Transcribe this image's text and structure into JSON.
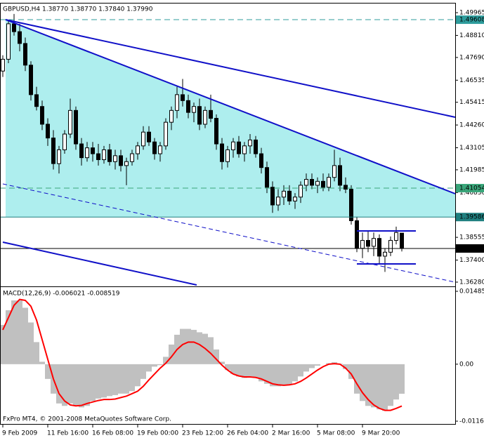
{
  "chart_data": [
    {
      "type": "candlestick",
      "title": "GBPUSD,H4  1.38770 1.38770 1.37840 1.37990",
      "up_color": "#ffffff",
      "down_color": "#000000",
      "wick_color": "#000000",
      "xlim": [
        -0.5,
        80.5
      ],
      "ylim": [
        1.361,
        1.5043
      ],
      "yticks": [
        1.49965,
        {
          "value": 1.4881,
          "label": "1.48810"
        },
        {
          "value": 1.4769,
          "label": "1.47690"
        },
        1.46535,
        1.45415,
        {
          "value": 1.4426,
          "label": "1.44260"
        },
        1.43105,
        1.41985,
        {
          "value": 1.4083,
          "label": "1.40830"
        },
        1.38555,
        {
          "value": 1.374,
          "label": "1.37400"
        },
        {
          "value": 1.3628,
          "label": "1.36280"
        }
      ],
      "price_lines": [
        {
          "value": 1.49608,
          "color": "#2e9c9c",
          "dashed": true
        },
        {
          "value": 1.41054,
          "color": "#3aa67a",
          "dashed": true
        },
        {
          "value": 1.39586,
          "color": "#1f7f7f",
          "dashed": false
        },
        {
          "value": 1.3799,
          "label": "1.37990",
          "color": "#000000",
          "dashed": false
        }
      ],
      "open": [
        1.47,
        1.476,
        1.494,
        1.49,
        1.484,
        1.473,
        1.458,
        1.452,
        1.443,
        1.436,
        1.423,
        1.43,
        1.438,
        1.45,
        1.433,
        1.426,
        1.431,
        1.428,
        1.425,
        1.43,
        1.424,
        1.427,
        1.422,
        1.424,
        1.428,
        1.432,
        1.439,
        1.434,
        1.428,
        1.432,
        1.444,
        1.45,
        1.458,
        1.455,
        1.449,
        1.452,
        1.443,
        1.45,
        1.446,
        1.433,
        1.424,
        1.43,
        1.434,
        1.428,
        1.432,
        1.435,
        1.428,
        1.421,
        1.411,
        1.402,
        1.406,
        1.409,
        1.404,
        1.406,
        1.412,
        1.415,
        1.412,
        1.414,
        1.411,
        1.416,
        1.422,
        1.412,
        1.41,
        1.394,
        1.38,
        1.384,
        1.381,
        1.385,
        1.376,
        1.378,
        1.384,
        1.3877
      ],
      "high": [
        1.478,
        1.496,
        1.499,
        1.494,
        1.487,
        1.475,
        1.462,
        1.455,
        1.446,
        1.44,
        1.432,
        1.44,
        1.456,
        1.452,
        1.436,
        1.434,
        1.434,
        1.433,
        1.432,
        1.433,
        1.43,
        1.43,
        1.426,
        1.43,
        1.434,
        1.442,
        1.442,
        1.436,
        1.434,
        1.446,
        1.452,
        1.462,
        1.466,
        1.458,
        1.454,
        1.456,
        1.452,
        1.458,
        1.448,
        1.436,
        1.432,
        1.436,
        1.437,
        1.434,
        1.438,
        1.437,
        1.431,
        1.424,
        1.414,
        1.41,
        1.412,
        1.412,
        1.408,
        1.414,
        1.418,
        1.418,
        1.416,
        1.418,
        1.418,
        1.43,
        1.426,
        1.416,
        1.412,
        1.396,
        1.388,
        1.389,
        1.388,
        1.387,
        1.38,
        1.386,
        1.391,
        1.3877
      ],
      "low": [
        1.467,
        1.474,
        1.488,
        1.48,
        1.47,
        1.455,
        1.45,
        1.44,
        1.432,
        1.42,
        1.418,
        1.428,
        1.436,
        1.43,
        1.422,
        1.424,
        1.424,
        1.422,
        1.423,
        1.422,
        1.42,
        1.419,
        1.412,
        1.422,
        1.425,
        1.43,
        1.432,
        1.425,
        1.424,
        1.43,
        1.44,
        1.446,
        1.452,
        1.446,
        1.444,
        1.44,
        1.441,
        1.444,
        1.43,
        1.42,
        1.421,
        1.426,
        1.426,
        1.424,
        1.428,
        1.426,
        1.418,
        1.408,
        1.398,
        1.399,
        1.402,
        1.402,
        1.4,
        1.403,
        1.409,
        1.41,
        1.408,
        1.409,
        1.409,
        1.414,
        1.409,
        1.408,
        1.392,
        1.378,
        1.375,
        1.378,
        1.376,
        1.372,
        1.368,
        1.376,
        1.382,
        1.3784
      ],
      "close": [
        1.476,
        1.494,
        1.49,
        1.484,
        1.473,
        1.458,
        1.452,
        1.443,
        1.436,
        1.423,
        1.43,
        1.438,
        1.45,
        1.433,
        1.426,
        1.431,
        1.428,
        1.425,
        1.43,
        1.424,
        1.427,
        1.422,
        1.424,
        1.428,
        1.432,
        1.439,
        1.434,
        1.428,
        1.432,
        1.444,
        1.45,
        1.458,
        1.455,
        1.449,
        1.452,
        1.443,
        1.45,
        1.446,
        1.433,
        1.424,
        1.43,
        1.434,
        1.428,
        1.432,
        1.435,
        1.428,
        1.421,
        1.411,
        1.402,
        1.406,
        1.409,
        1.404,
        1.406,
        1.412,
        1.415,
        1.412,
        1.414,
        1.411,
        1.416,
        1.422,
        1.412,
        1.41,
        1.394,
        1.38,
        1.384,
        1.381,
        1.385,
        1.376,
        1.378,
        1.384,
        1.388,
        1.3799
      ]
    },
    {
      "type": "macd",
      "title": "MACD(12,26,9) -0.006021 -0.008519",
      "xlim": [
        -0.5,
        80.5
      ],
      "ylim": [
        -0.01218,
        0.01557
      ],
      "yticks": [
        0.014852,
        {
          "value": 0,
          "label": "0.00"
        },
        -0.011611
      ],
      "xticks": [
        {
          "value": 0,
          "label": "9 Feb 2009"
        },
        {
          "value": 8,
          "label": "11 Feb 16:00"
        },
        {
          "value": 16,
          "label": "16 Feb 08:00"
        },
        {
          "value": 24,
          "label": "19 Feb 00:00"
        },
        {
          "value": 32,
          "label": "23 Feb 12:00"
        },
        {
          "value": 40,
          "label": "26 Feb 04:00"
        },
        {
          "value": 48,
          "label": "2 Mar 16:00"
        },
        {
          "value": 56,
          "label": "5 Mar 08:00"
        },
        {
          "value": 64,
          "label": "9 Mar 20:00"
        }
      ],
      "series": [
        {
          "style": "histogram",
          "color": "#c0c0c0",
          "values": [
            0.008,
            0.011,
            0.013,
            0.013,
            0.0115,
            0.0085,
            0.0045,
            0.0005,
            -0.003,
            -0.006,
            -0.008,
            -0.0085,
            -0.008,
            -0.0085,
            -0.0088,
            -0.0085,
            -0.0075,
            -0.007,
            -0.0068,
            -0.0065,
            -0.0063,
            -0.006,
            -0.006,
            -0.0055,
            -0.0045,
            -0.003,
            -0.0015,
            -0.0005,
            -0.0002,
            0.0015,
            0.004,
            0.006,
            0.0072,
            0.0072,
            0.007,
            0.0065,
            0.0062,
            0.0055,
            0.003,
            0.0005,
            -0.0012,
            -0.002,
            -0.0025,
            -0.0028,
            -0.0025,
            -0.0028,
            -0.0035,
            -0.004,
            -0.0045,
            -0.0045,
            -0.0044,
            -0.0042,
            -0.0035,
            -0.0025,
            -0.0015,
            -0.0008,
            -0.0003,
            0.0,
            0.0002,
            0.0004,
            0.0001,
            -0.001,
            -0.003,
            -0.006,
            -0.0075,
            -0.0085,
            -0.0088,
            -0.0092,
            -0.0095,
            -0.0085,
            -0.0072,
            -0.006021
          ]
        },
        {
          "style": "line",
          "color": "#ff0000",
          "values": [
            0.007,
            0.0095,
            0.012,
            0.0132,
            0.013,
            0.0118,
            0.009,
            0.005,
            0.001,
            -0.003,
            -0.006,
            -0.0075,
            -0.0083,
            -0.0085,
            -0.0084,
            -0.008,
            -0.0077,
            -0.0074,
            -0.0072,
            -0.0072,
            -0.0071,
            -0.0068,
            -0.0065,
            -0.006,
            -0.0055,
            -0.0045,
            -0.0032,
            -0.002,
            -0.0008,
            0.0002,
            0.0015,
            0.003,
            0.004,
            0.0045,
            0.0045,
            0.004,
            0.0032,
            0.0022,
            0.001,
            -0.0002,
            -0.0012,
            -0.002,
            -0.0024,
            -0.0026,
            -0.0026,
            -0.0027,
            -0.003,
            -0.0035,
            -0.004,
            -0.0042,
            -0.0043,
            -0.0042,
            -0.004,
            -0.0035,
            -0.0028,
            -0.002,
            -0.0012,
            -0.0005,
            0.0,
            0.0001,
            0.0,
            -0.0008,
            -0.002,
            -0.004,
            -0.0058,
            -0.0072,
            -0.0083,
            -0.009,
            -0.0094,
            -0.0094,
            -0.009,
            -0.008519
          ]
        }
      ]
    }
  ],
  "footer": "FxPro MT4, © 2001-2008 MetaQuotes Software Corp."
}
